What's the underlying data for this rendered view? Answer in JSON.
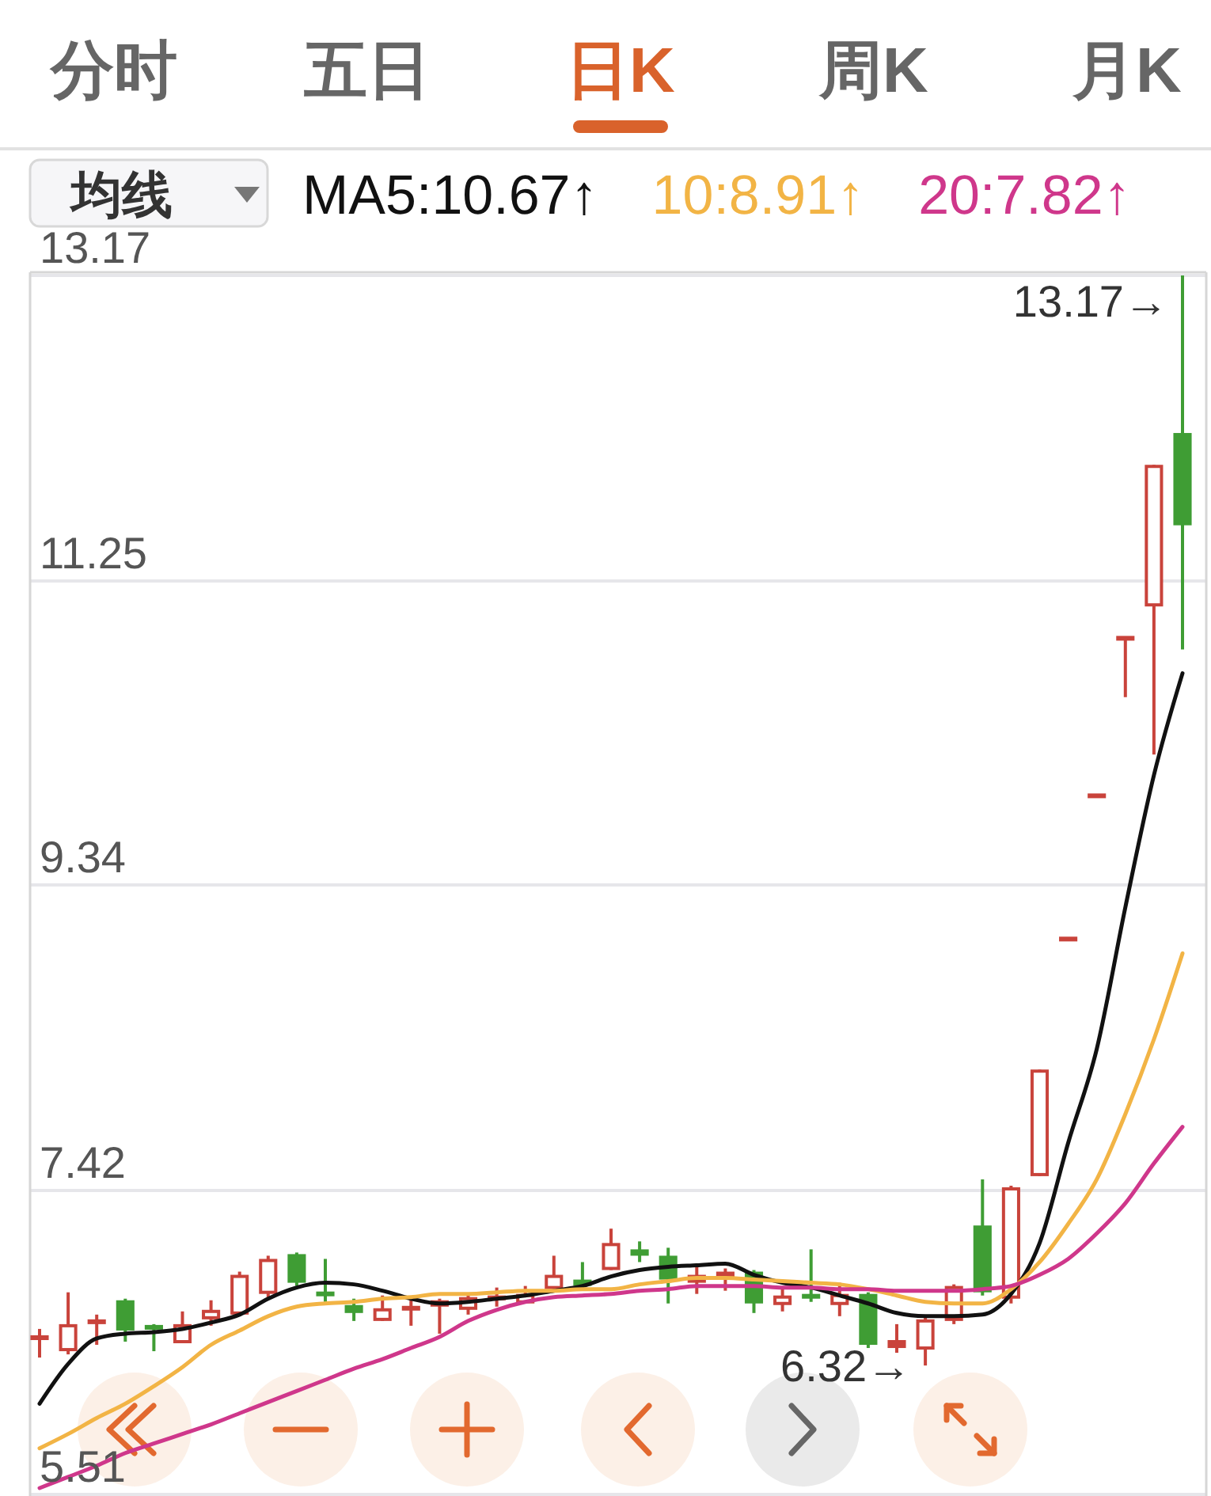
{
  "chart_data": {
    "type": "candlestick",
    "categories": [
      null,
      null,
      null,
      null,
      null,
      null,
      null,
      null,
      null,
      null,
      null,
      null,
      null,
      null,
      null,
      null,
      null,
      null,
      null,
      null,
      null,
      null,
      null,
      null,
      null,
      null,
      null,
      null,
      null,
      null,
      null,
      null,
      null,
      null,
      null,
      null,
      null,
      null,
      null,
      null,
      null
    ],
    "ohlc": [
      [
        6.48,
        6.55,
        6.37,
        6.51
      ],
      [
        6.41,
        6.78,
        6.39,
        6.58
      ],
      [
        6.58,
        6.64,
        6.45,
        6.61
      ],
      [
        6.73,
        6.74,
        6.47,
        6.54
      ],
      [
        6.57,
        6.58,
        6.41,
        6.55
      ],
      [
        6.46,
        6.66,
        6.46,
        6.58
      ],
      [
        6.61,
        6.73,
        6.57,
        6.67
      ],
      [
        6.64,
        6.91,
        6.63,
        6.89
      ],
      [
        6.77,
        7.01,
        6.74,
        6.99
      ],
      [
        7.02,
        7.03,
        6.82,
        6.84
      ],
      [
        6.78,
        6.99,
        6.72,
        6.76
      ],
      [
        6.7,
        6.74,
        6.6,
        6.65
      ],
      [
        6.6,
        6.76,
        6.6,
        6.68
      ],
      [
        6.67,
        6.73,
        6.57,
        6.69
      ],
      [
        6.69,
        6.74,
        6.52,
        6.73
      ],
      [
        6.67,
        6.76,
        6.64,
        6.75
      ],
      [
        6.73,
        6.81,
        6.69,
        6.76
      ],
      [
        6.71,
        6.82,
        6.71,
        6.77
      ],
      [
        6.8,
        7.01,
        6.8,
        6.89
      ],
      [
        6.86,
        6.97,
        6.8,
        6.82
      ],
      [
        6.92,
        7.18,
        6.92,
        7.09
      ],
      [
        7.05,
        7.1,
        6.97,
        7.01
      ],
      [
        7.01,
        7.06,
        6.71,
        6.86
      ],
      [
        6.84,
        6.96,
        6.77,
        6.89
      ],
      [
        6.86,
        6.93,
        6.79,
        6.91
      ],
      [
        6.91,
        6.92,
        6.65,
        6.71
      ],
      [
        6.7,
        6.8,
        6.66,
        6.76
      ],
      [
        6.77,
        7.05,
        6.72,
        6.74
      ],
      [
        6.7,
        6.84,
        6.63,
        6.77
      ],
      [
        6.77,
        6.78,
        6.43,
        6.45
      ],
      [
        6.43,
        6.58,
        6.4,
        6.48
      ],
      [
        6.42,
        6.62,
        6.32,
        6.61
      ],
      [
        6.6,
        6.83,
        6.58,
        6.82
      ],
      [
        7.2,
        7.49,
        6.76,
        6.78
      ],
      [
        6.74,
        7.45,
        6.71,
        7.44
      ],
      [
        7.51,
        8.18,
        7.51,
        8.18
      ],
      [
        9.0,
        9.0,
        9.0,
        9.0
      ],
      [
        9.9,
        9.9,
        9.9,
        9.9
      ],
      [
        10.89,
        10.89,
        10.52,
        10.89
      ],
      [
        11.09,
        11.98,
        10.16,
        11.98
      ],
      [
        12.18,
        13.17,
        10.82,
        11.6
      ]
    ],
    "colors": [
      "#c9433b",
      "#c9433b",
      "#c9433b",
      "#3f9d34",
      "#3f9d34",
      "#c9433b",
      "#c9433b",
      "#c9433b",
      "#c9433b",
      "#3f9d34",
      "#3f9d34",
      "#3f9d34",
      "#c9433b",
      "#c9433b",
      "#c9433b",
      "#c9433b",
      "#c9433b",
      "#c9433b",
      "#c9433b",
      "#3f9d34",
      "#c9433b",
      "#3f9d34",
      "#3f9d34",
      "#c9433b",
      "#c9433b",
      "#3f9d34",
      "#c9433b",
      "#3f9d34",
      "#c9433b",
      "#3f9d34",
      "#c9433b",
      "#c9433b",
      "#c9433b",
      "#3f9d34",
      "#c9433b",
      "#c9433b",
      "#c9433b",
      "#c9433b",
      "#c9433b",
      "#c9433b",
      "#3f9d34"
    ],
    "series": [
      {
        "name": "MA5:10.67↑",
        "type": "line",
        "color": "#111111",
        "values": [
          6.08,
          6.33,
          6.49,
          6.52,
          6.53,
          6.55,
          6.59,
          6.64,
          6.74,
          6.81,
          6.84,
          6.83,
          6.79,
          6.74,
          6.71,
          6.72,
          6.74,
          6.76,
          6.79,
          6.82,
          6.88,
          6.92,
          6.94,
          6.95,
          6.96,
          6.89,
          6.84,
          6.81,
          6.76,
          6.71,
          6.65,
          6.63,
          6.63,
          6.64,
          6.77,
          7.09,
          7.72,
          8.31,
          9.2,
          10.03,
          10.67
        ]
      },
      {
        "name": "10:8.91↑",
        "type": "line",
        "color": "#f2b445",
        "values": [
          5.8,
          5.89,
          5.99,
          6.08,
          6.19,
          6.31,
          6.45,
          6.54,
          6.63,
          6.69,
          6.71,
          6.72,
          6.74,
          6.75,
          6.77,
          6.77,
          6.78,
          6.79,
          6.79,
          6.8,
          6.8,
          6.83,
          6.85,
          6.87,
          6.87,
          6.86,
          6.85,
          6.84,
          6.83,
          6.8,
          6.76,
          6.72,
          6.71,
          6.71,
          6.8,
          6.97,
          7.21,
          7.49,
          7.9,
          8.37,
          8.91
        ]
      },
      {
        "name": "20:7.82↑",
        "type": "line",
        "color": "#cf378b",
        "values": [
          5.55,
          5.62,
          5.69,
          5.77,
          5.83,
          5.89,
          5.95,
          6.02,
          6.09,
          6.16,
          6.23,
          6.3,
          6.36,
          6.43,
          6.5,
          6.6,
          6.67,
          6.72,
          6.75,
          6.76,
          6.77,
          6.79,
          6.8,
          6.82,
          6.82,
          6.82,
          6.81,
          6.81,
          6.8,
          6.8,
          6.79,
          6.79,
          6.79,
          6.8,
          6.82,
          6.89,
          6.99,
          7.15,
          7.34,
          7.59,
          7.82
        ]
      }
    ],
    "ylim": [
      5.51,
      13.17
    ],
    "yticks": [
      13.17,
      11.25,
      9.34,
      7.42,
      5.51
    ],
    "grid": "y",
    "tick_labels": "y",
    "legend": "top",
    "legend_title": "均线",
    "annotations": [
      "13.17→",
      "6.32→",
      "分时",
      "五日",
      "日K",
      "周K",
      "月K"
    ]
  }
}
